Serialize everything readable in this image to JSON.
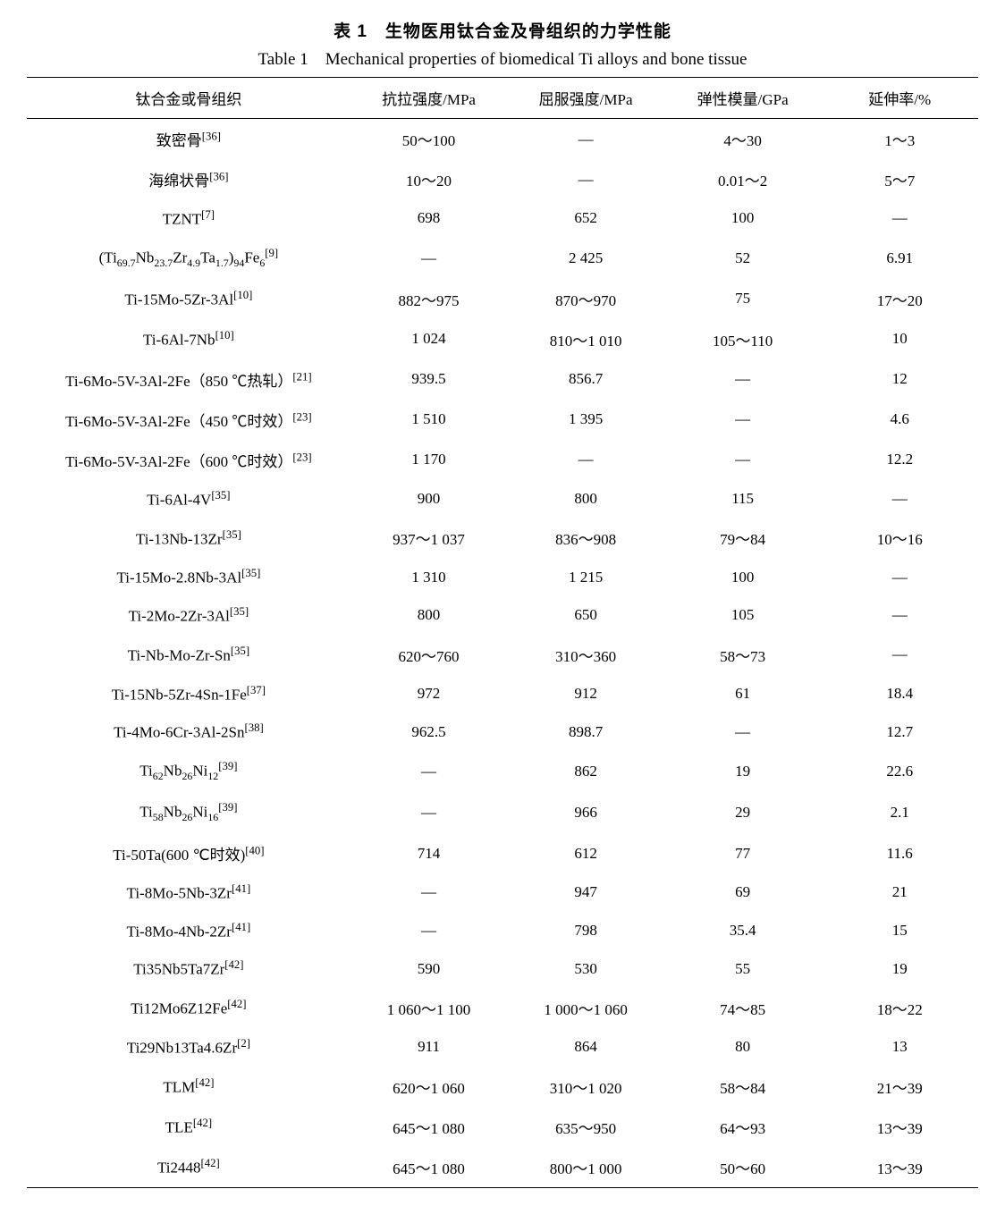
{
  "title_cn": "表 1　生物医用钛合金及骨组织的力学性能",
  "title_en": "Table 1　Mechanical properties of biomedical Ti alloys and bone tissue",
  "columns": [
    "钛合金或骨组织",
    "抗拉强度/MPa",
    "屈服强度/MPa",
    "弹性模量/GPa",
    "延伸率/%"
  ],
  "column_widths_pct": [
    34,
    16.5,
    16.5,
    16.5,
    16.5
  ],
  "font_family": "Times New Roman / SimSun",
  "header_fontsize_pt": 17,
  "body_fontsize_pt": 17,
  "border_color": "#000000",
  "background_color": "#ffffff",
  "rows": [
    {
      "name_html": "致密骨<span class='ref'>[36]</span>",
      "uts": "50～100",
      "ys": "—",
      "e": "4～30",
      "el": "1～3"
    },
    {
      "name_html": "海绵状骨<span class='ref'>[36]</span>",
      "uts": "10～20",
      "ys": "—",
      "e": "0.01～2",
      "el": "5～7"
    },
    {
      "name_html": "TZNT<span class='ref'>[7]</span>",
      "uts": "698",
      "ys": "652",
      "e": "100",
      "el": "—"
    },
    {
      "name_html": "(Ti<sub>69.7</sub>Nb<sub>23.7</sub>Zr<sub>4.9</sub>Ta<sub>1.7</sub>)<sub>94</sub>Fe<sub>6</sub><span class='ref'>[9]</span>",
      "uts": "—",
      "ys": "2 425",
      "e": "52",
      "el": "6.91"
    },
    {
      "name_html": "Ti-15Mo-5Zr-3Al<span class='ref'>[10]</span>",
      "uts": "882～975",
      "ys": "870～970",
      "e": "75",
      "el": "17～20"
    },
    {
      "name_html": "Ti-6Al-7Nb<span class='ref'>[10]</span>",
      "uts": "1 024",
      "ys": "810～1 010",
      "e": "105～110",
      "el": "10"
    },
    {
      "name_html": "Ti-6Mo-5V-3Al-2Fe（850 ℃热轧）<span class='ref'>[21]</span>",
      "uts": "939.5",
      "ys": "856.7",
      "e": "—",
      "el": "12"
    },
    {
      "name_html": "Ti-6Mo-5V-3Al-2Fe（450 ℃时效）<span class='ref'>[23]</span>",
      "uts": "1 510",
      "ys": "1 395",
      "e": "—",
      "el": "4.6"
    },
    {
      "name_html": "Ti-6Mo-5V-3Al-2Fe（600 ℃时效）<span class='ref'>[23]</span>",
      "uts": "1 170",
      "ys": "—",
      "e": "—",
      "el": "12.2"
    },
    {
      "name_html": "Ti-6Al-4V<span class='ref'>[35]</span>",
      "uts": "900",
      "ys": "800",
      "e": "115",
      "el": "—"
    },
    {
      "name_html": "Ti-13Nb-13Zr<span class='ref'>[35]</span>",
      "uts": "937～1 037",
      "ys": "836～908",
      "e": "79～84",
      "el": "10～16"
    },
    {
      "name_html": "Ti-15Mo-2.8Nb-3Al<span class='ref'>[35]</span>",
      "uts": "1 310",
      "ys": "1 215",
      "e": "100",
      "el": "—"
    },
    {
      "name_html": "Ti-2Mo-2Zr-3Al<span class='ref'>[35]</span>",
      "uts": "800",
      "ys": "650",
      "e": "105",
      "el": "—"
    },
    {
      "name_html": "Ti-Nb-Mo-Zr-Sn<span class='ref'>[35]</span>",
      "uts": "620～760",
      "ys": "310～360",
      "e": "58～73",
      "el": "—"
    },
    {
      "name_html": "Ti-15Nb-5Zr-4Sn-1Fe<span class='ref'>[37]</span>",
      "uts": "972",
      "ys": "912",
      "e": "61",
      "el": "18.4"
    },
    {
      "name_html": "Ti-4Mo-6Cr-3Al-2Sn<span class='ref'>[38]</span>",
      "uts": "962.5",
      "ys": "898.7",
      "e": "—",
      "el": "12.7"
    },
    {
      "name_html": "Ti<sub>62</sub>Nb<sub>26</sub>Ni<sub>12</sub><span class='ref'>[39]</span>",
      "uts": "—",
      "ys": "862",
      "e": "19",
      "el": "22.6"
    },
    {
      "name_html": "Ti<sub>58</sub>Nb<sub>26</sub>Ni<sub>16</sub><span class='ref'>[39]</span>",
      "uts": "—",
      "ys": "966",
      "e": "29",
      "el": "2.1"
    },
    {
      "name_html": "Ti-50Ta(600 ℃时效)<span class='ref'>[40]</span>",
      "uts": "714",
      "ys": "612",
      "e": "77",
      "el": "11.6"
    },
    {
      "name_html": "Ti-8Mo-5Nb-3Zr<span class='ref'>[41]</span>",
      "uts": "—",
      "ys": "947",
      "e": "69",
      "el": "21"
    },
    {
      "name_html": "Ti-8Mo-4Nb-2Zr<span class='ref'>[41]</span>",
      "uts": "—",
      "ys": "798",
      "e": "35.4",
      "el": "15"
    },
    {
      "name_html": "Ti35Nb5Ta7Zr<span class='ref'>[42]</span>",
      "uts": "590",
      "ys": "530",
      "e": "55",
      "el": "19"
    },
    {
      "name_html": "Ti12Mo6Z12Fe<span class='ref'>[42]</span>",
      "uts": "1 060～1 100",
      "ys": "1 000～1 060",
      "e": "74～85",
      "el": "18～22"
    },
    {
      "name_html": "Ti29Nb13Ta4.6Zr<span class='ref'>[2]</span>",
      "uts": "911",
      "ys": "864",
      "e": "80",
      "el": "13"
    },
    {
      "name_html": "TLM<span class='ref'>[42]</span>",
      "uts": "620～1 060",
      "ys": "310～1 020",
      "e": "58～84",
      "el": "21～39"
    },
    {
      "name_html": "TLE<span class='ref'>[42]</span>",
      "uts": "645～1 080",
      "ys": "635～950",
      "e": "64～93",
      "el": "13～39"
    },
    {
      "name_html": "Ti2448<span class='ref'>[42]</span>",
      "uts": "645～1 080",
      "ys": "800～1 000",
      "e": "50～60",
      "el": "13～39"
    }
  ]
}
